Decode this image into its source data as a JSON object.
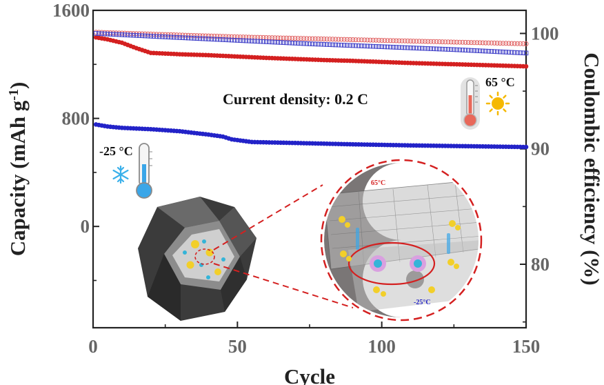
{
  "chart_data": {
    "type": "scatter",
    "xlabel": "Cycle",
    "ylabel_left": "Capacity (mAh g-1)",
    "ylabel_left_main": "Capacity (mAh g",
    "ylabel_left_sup": "-1",
    "ylabel_left_close": ")",
    "ylabel_right": "Coulombic efficiency (%)",
    "xlim": [
      0,
      150
    ],
    "ylim_left": [
      -750,
      1600
    ],
    "ylim_right": [
      74.5,
      102
    ],
    "x_ticks": [
      0,
      50,
      100,
      150
    ],
    "x_tick_labels": [
      "0",
      "50",
      "100",
      "150"
    ],
    "y_left_ticks": [
      0,
      800,
      1600
    ],
    "y_left_tick_labels": [
      "0",
      "800",
      "1600"
    ],
    "y_right_ticks": [
      80,
      90,
      100
    ],
    "y_right_tick_labels": [
      "80",
      "90",
      "100"
    ],
    "grid": false,
    "series": [
      {
        "name": "65 °C",
        "axis": "left",
        "metric": "capacity",
        "color": "#d42020",
        "marker": "filled-circle",
        "x": [
          1,
          5,
          10,
          15,
          20,
          30,
          40,
          50,
          60,
          70,
          80,
          90,
          100,
          110,
          120,
          130,
          140,
          150
        ],
        "y": [
          1400,
          1385,
          1360,
          1320,
          1285,
          1275,
          1268,
          1258,
          1248,
          1240,
          1232,
          1226,
          1218,
          1210,
          1204,
          1198,
          1192,
          1185
        ]
      },
      {
        "name": "-25 °C",
        "axis": "left",
        "metric": "capacity",
        "color": "#2323c8",
        "marker": "filled-circle",
        "x": [
          1,
          5,
          10,
          20,
          30,
          40,
          45,
          48,
          55,
          70,
          90,
          110,
          130,
          150
        ],
        "y": [
          755,
          740,
          730,
          720,
          705,
          680,
          665,
          645,
          625,
          618,
          608,
          600,
          594,
          588
        ]
      },
      {
        "name": "65 °C",
        "axis": "right",
        "metric": "coulombic_efficiency",
        "color": "#e06060",
        "marker": "open-circle",
        "x": [
          1,
          25,
          50,
          75,
          100,
          125,
          150
        ],
        "y": [
          100.1,
          99.9,
          99.7,
          99.55,
          99.4,
          99.25,
          99.1
        ]
      },
      {
        "name": "-25 °C",
        "axis": "right",
        "metric": "coulombic_efficiency",
        "color": "#4040c8",
        "marker": "open-square",
        "x": [
          1,
          25,
          50,
          75,
          100,
          125,
          150
        ],
        "y": [
          100.0,
          99.7,
          99.4,
          99.1,
          98.85,
          98.6,
          98.3
        ]
      }
    ],
    "annotations": {
      "current_density": "Current density: 0.2 C",
      "high_temp": "65 °C",
      "low_temp": "-25 °C",
      "inset_high": "65°C",
      "inset_low": "-25°C"
    }
  },
  "colors": {
    "red": "#d42020",
    "blue": "#2323c8",
    "thermo_hot": "#e8685a",
    "thermo_cold": "#3aa6e8",
    "sun": "#f5b800",
    "snow": "#3ab0ea",
    "inset_circle": "#d42020"
  },
  "icons": [
    "thermometer-icon",
    "sun-icon",
    "snowflake-icon",
    "thermometer-cold-icon"
  ]
}
